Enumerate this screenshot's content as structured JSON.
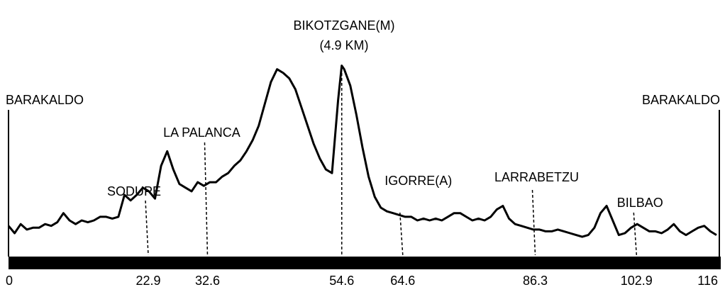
{
  "chart_data": {
    "type": "line",
    "title": "",
    "xlabel": "",
    "ylabel": "",
    "xlim": [
      0,
      116
    ],
    "x_ticks": [
      "0",
      "22.9",
      "32.6",
      "54.6",
      "64.6",
      "86.3",
      "102.9",
      "116"
    ],
    "start_label": "BARAKALDO",
    "end_label": "BARAKALDO",
    "summit_label": {
      "name": "BIKOTZGANE(M)",
      "distance": "(4.9 KM)",
      "km": 54.6
    },
    "waypoints": [
      {
        "name": "SODUPE",
        "km": 22.9
      },
      {
        "name": "LA PALANCA",
        "km": 32.6
      },
      {
        "name": "IGORRE(A)",
        "km": 64.6
      },
      {
        "name": "LARRABETZU",
        "km": 86.3
      },
      {
        "name": "BILBAO",
        "km": 102.9
      }
    ],
    "ylim": [
      0,
      100
    ],
    "series": [
      {
        "x": [
          0,
          1,
          2,
          3,
          4,
          5,
          6,
          7,
          8,
          9,
          10,
          11,
          12,
          13,
          14,
          15,
          16,
          17,
          18,
          19,
          20,
          21,
          22,
          23,
          24,
          25,
          26,
          27,
          28,
          29,
          30,
          31,
          32,
          33,
          34,
          35,
          36,
          37,
          38,
          39,
          40,
          41,
          42,
          43,
          44,
          45,
          46,
          47,
          48,
          49,
          50,
          51,
          52,
          53,
          54,
          54.6,
          55,
          56,
          57,
          58,
          59,
          60,
          61,
          62,
          63,
          64,
          65,
          66,
          67,
          68,
          69,
          70,
          71,
          72,
          73,
          74,
          75,
          76,
          77,
          78,
          79,
          80,
          81,
          82,
          83,
          84,
          85,
          86,
          87,
          88,
          89,
          90,
          91,
          92,
          93,
          94,
          95,
          96,
          97,
          98,
          99,
          100,
          101,
          102,
          103,
          104,
          105,
          106,
          107,
          108,
          109,
          110,
          111,
          112,
          113,
          114,
          115,
          116
        ],
        "y": [
          11,
          7,
          12,
          9,
          10,
          10,
          12,
          11,
          13,
          18,
          14,
          12,
          14,
          13,
          14,
          16,
          16,
          15,
          16,
          28,
          25,
          28,
          32,
          30,
          26,
          44,
          52,
          42,
          34,
          32,
          30,
          35,
          33,
          35,
          35,
          38,
          40,
          44,
          47,
          52,
          58,
          66,
          78,
          90,
          97,
          95,
          92,
          86,
          76,
          66,
          56,
          48,
          42,
          40,
          80,
          99,
          97,
          88,
          72,
          54,
          38,
          27,
          21,
          19,
          18,
          17,
          16,
          16,
          14,
          15,
          14,
          15,
          14,
          16,
          18,
          18,
          16,
          14,
          15,
          14,
          16,
          20,
          22,
          15,
          12,
          11,
          10,
          9,
          9,
          8,
          8,
          9,
          8,
          7,
          6,
          5,
          6,
          10,
          18,
          22,
          14,
          6,
          7,
          10,
          12,
          10,
          8,
          8,
          7,
          9,
          12,
          8,
          6,
          8,
          10,
          11,
          8,
          6
        ]
      }
    ]
  }
}
